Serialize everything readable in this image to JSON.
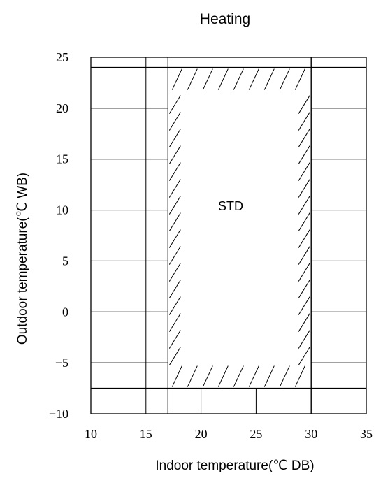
{
  "chart_data": {
    "type": "area",
    "title": "Heating",
    "xlabel": "Indoor temperature(℃ DB)",
    "ylabel": "Outdoor temperature(℃ WB)",
    "xlim": [
      10,
      35
    ],
    "ylim": [
      -10,
      25
    ],
    "x_ticks": [
      10,
      15,
      20,
      25,
      30,
      35
    ],
    "x_tick_labels": [
      "10",
      "15",
      "20",
      "25",
      "30",
      "35"
    ],
    "y_ticks": [
      25,
      20,
      15,
      10,
      5,
      0,
      -5,
      -10
    ],
    "y_tick_labels": [
      "25",
      "20",
      "15",
      "10",
      "5",
      "0",
      "−5",
      "−10"
    ],
    "regions": [
      {
        "name": "STD",
        "x_range": [
          17,
          30
        ],
        "y_range": [
          -7.5,
          24
        ],
        "style": "hatched border"
      }
    ],
    "grid": true
  }
}
